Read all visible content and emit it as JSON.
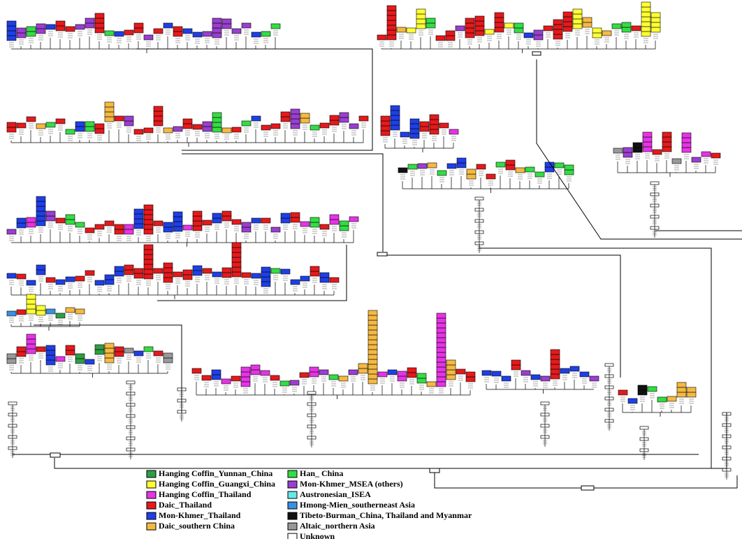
{
  "legend": [
    {
      "label": "Hanging Coffin_Yunnan_China",
      "color": "#2e9e44"
    },
    {
      "label": "Hanging Coffin_Guangxi_China",
      "color": "#ffff33"
    },
    {
      "label": "Hanging Coffin_Thailand",
      "color": "#e633e6"
    },
    {
      "label": "Daic_Thailand",
      "color": "#e41a1c"
    },
    {
      "label": "Mon-Khmer_Thailand",
      "color": "#1f3fe6"
    },
    {
      "label": "Daic_southern China",
      "color": "#f5b942"
    },
    {
      "label": "Han_ China",
      "color": "#33dd44"
    },
    {
      "label": "Mon-Khmer_MSEA (others)",
      "color": "#9a3fd0"
    },
    {
      "label": "Austronesian_ISEA",
      "color": "#66e8e8"
    },
    {
      "label": "Hmong-Mien_southerneast Asia",
      "color": "#3a8fe0"
    },
    {
      "label": "Tibeto-Burman_China, Thailand and Myanmar",
      "color": "#111111"
    },
    {
      "label": "Altaic_northern Asia",
      "color": "#999999"
    },
    {
      "label": "Unknown",
      "color": "#ffffff"
    }
  ]
}
